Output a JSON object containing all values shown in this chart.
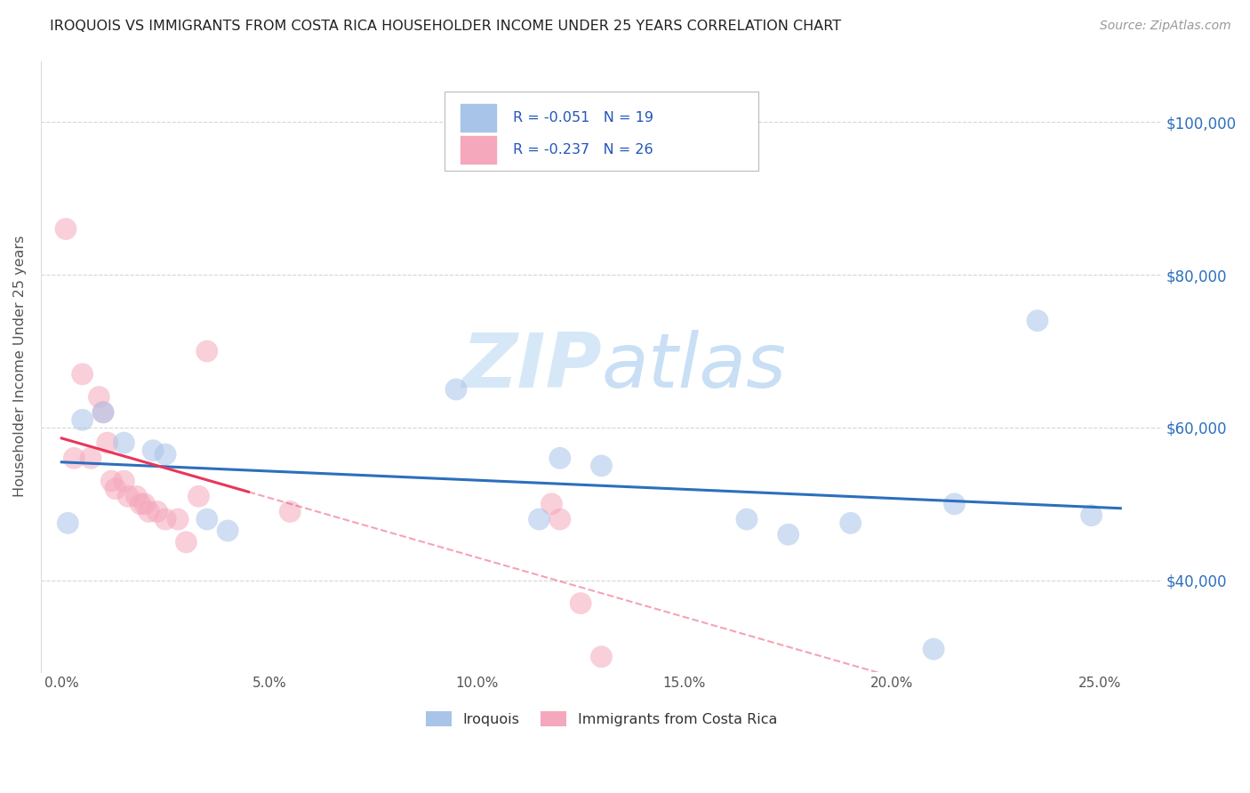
{
  "title": "IROQUOIS VS IMMIGRANTS FROM COSTA RICA HOUSEHOLDER INCOME UNDER 25 YEARS CORRELATION CHART",
  "source_text": "Source: ZipAtlas.com",
  "ylabel": "Householder Income Under 25 years",
  "xlabel_ticks": [
    "0.0%",
    "5.0%",
    "10.0%",
    "15.0%",
    "20.0%",
    "25.0%"
  ],
  "xlabel_vals": [
    0.0,
    5.0,
    10.0,
    15.0,
    20.0,
    25.0
  ],
  "ylim": [
    28000,
    108000
  ],
  "xlim": [
    -0.5,
    26.5
  ],
  "ytick_vals": [
    40000,
    60000,
    80000,
    100000
  ],
  "ytick_labels": [
    "$40,000",
    "$60,000",
    "$80,000",
    "$100,000"
  ],
  "blue_color": "#a8c4e8",
  "pink_color": "#f5a8bc",
  "blue_line_color": "#2c6fbd",
  "pink_line_color": "#e8365a",
  "background_color": "#ffffff",
  "grid_color": "#cccccc",
  "watermark_color": "#d6e8f7",
  "title_color": "#222222",
  "source_color": "#999999",
  "axis_label_color": "#555555",
  "right_ytick_color": "#2c6fbd",
  "legend_text_color": "#333333",
  "legend_value_color": "#2255bb",
  "iroquois_x": [
    0.15,
    0.5,
    1.0,
    1.5,
    2.2,
    2.5,
    3.5,
    4.0,
    9.5,
    11.5,
    12.0,
    13.0,
    16.5,
    17.5,
    19.0,
    21.0,
    21.5,
    23.5,
    24.8
  ],
  "iroquois_y": [
    47500,
    61000,
    62000,
    58000,
    57000,
    56500,
    48000,
    46500,
    65000,
    48000,
    56000,
    55000,
    48000,
    46000,
    47500,
    31000,
    50000,
    74000,
    48500
  ],
  "costarica_x": [
    0.1,
    0.3,
    0.5,
    0.7,
    0.9,
    1.0,
    1.1,
    1.2,
    1.3,
    1.5,
    1.6,
    1.8,
    1.9,
    2.0,
    2.1,
    2.3,
    2.5,
    2.8,
    3.0,
    3.3,
    3.5,
    5.5,
    11.8,
    12.0,
    12.5,
    13.0
  ],
  "costarica_y": [
    86000,
    56000,
    67000,
    56000,
    64000,
    62000,
    58000,
    53000,
    52000,
    53000,
    51000,
    51000,
    50000,
    50000,
    49000,
    49000,
    48000,
    48000,
    45000,
    51000,
    70000,
    49000,
    50000,
    48000,
    37000,
    30000
  ],
  "pink_line_solid_end_x": 4.5,
  "pink_line_dash_end_x": 21.0,
  "figsize": [
    14.06,
    8.92
  ],
  "dpi": 100
}
